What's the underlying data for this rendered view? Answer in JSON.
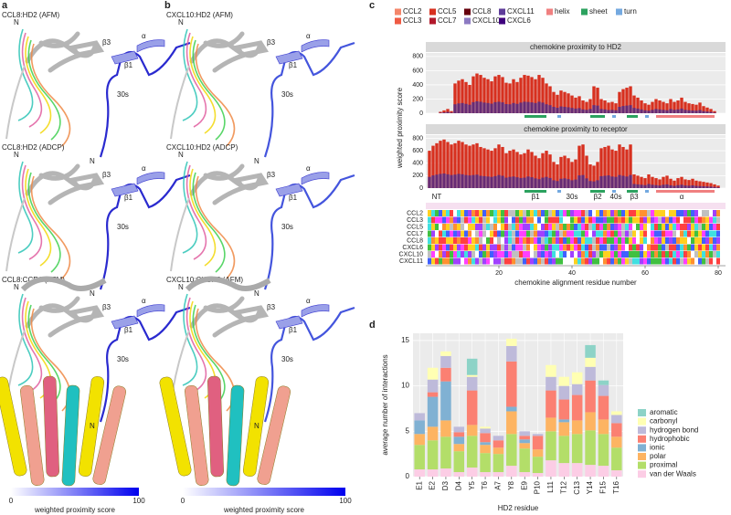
{
  "panels": {
    "a": "a",
    "b": "b",
    "c": "c",
    "d": "d"
  },
  "structures": [
    {
      "title": "CCL8:HD2 (AFM)",
      "labels": [
        "N",
        "β3",
        "α",
        "β1",
        "30s",
        "N"
      ]
    },
    {
      "title": "CCL8:HD2 (ADCP)",
      "labels": [
        "N",
        "β3",
        "α",
        "β1",
        "30s",
        "N"
      ]
    },
    {
      "title": "CCL8:CCR1 (AFM)",
      "labels": [
        "N",
        "β3",
        "α",
        "β1",
        "30s",
        "N"
      ]
    },
    {
      "title": "CXCL10:HD2 (AFM)",
      "labels": [
        "N",
        "β3",
        "α",
        "β1",
        "30s",
        "N"
      ]
    },
    {
      "title": "CXCL10:HD2 (ADCP)",
      "labels": [
        "N",
        "β3",
        "α",
        "β1",
        "30s",
        "N"
      ]
    },
    {
      "title": "CXCL10:CXCR3 (AFM)",
      "labels": [
        "N",
        "β3",
        "α",
        "β1",
        "30s",
        "N"
      ]
    }
  ],
  "colorbars": [
    {
      "min": 0,
      "max": 100,
      "label": "weighted proximity score"
    },
    {
      "min": 0,
      "max": 100,
      "label": "weighted proximity score"
    }
  ],
  "legend_c": [
    {
      "name": "CCL2",
      "color": "#f4866a"
    },
    {
      "name": "CCL3",
      "color": "#ef5a43"
    },
    {
      "name": "CCL5",
      "color": "#d7301f"
    },
    {
      "name": "CCL7",
      "color": "#b2182b"
    },
    {
      "name": "CCL8",
      "color": "#67000d"
    },
    {
      "name": "CXCL10",
      "color": "#8c7ac2"
    },
    {
      "name": "CXCL11",
      "color": "#5e3c99"
    },
    {
      "name": "CXCL6",
      "color": "#3f007d"
    },
    {
      "name": "helix",
      "color": "#f08080"
    },
    {
      "name": "sheet",
      "color": "#2ca25f"
    },
    {
      "name": "turn",
      "color": "#74a9e0"
    }
  ],
  "structure_c": [
    {
      "name": "sheet",
      "range": [
        27,
        33
      ]
    },
    {
      "name": "turn",
      "range": [
        36,
        37
      ]
    },
    {
      "name": "sheet",
      "range": [
        45,
        49
      ]
    },
    {
      "name": "turn",
      "range": [
        51,
        52
      ]
    },
    {
      "name": "sheet",
      "range": [
        55,
        58
      ]
    },
    {
      "name": "turn",
      "range": [
        60,
        61
      ]
    },
    {
      "name": "helix",
      "range": [
        63,
        79
      ]
    }
  ],
  "regions_c": [
    {
      "text": "NT",
      "at": 3
    },
    {
      "text": "β1",
      "at": 30
    },
    {
      "text": "30s",
      "at": 40
    },
    {
      "text": "β2",
      "at": 47
    },
    {
      "text": "40s",
      "at": 52
    },
    {
      "text": "β3",
      "at": 57
    },
    {
      "text": "α",
      "at": 70
    }
  ],
  "alignment_rows": [
    "CCL2",
    "CCL3",
    "CCL5",
    "CCL7",
    "CCL8",
    "CXCL6",
    "CXCL10",
    "CXCL11"
  ],
  "chart_data": [
    {
      "type": "bar",
      "title": "chemokine proximity to HD2",
      "color": "#d7301f",
      "values": [
        0,
        0,
        0,
        20,
        40,
        60,
        30,
        420,
        460,
        480,
        440,
        400,
        520,
        560,
        540,
        500,
        480,
        450,
        520,
        540,
        510,
        430,
        420,
        480,
        440,
        500,
        540,
        530,
        510,
        480,
        540,
        500,
        420,
        380,
        300,
        260,
        320,
        300,
        280,
        250,
        220,
        240,
        180,
        160,
        200,
        380,
        360,
        200,
        180,
        150,
        160,
        140,
        300,
        340,
        360,
        380,
        250,
        220,
        180,
        140,
        120,
        160,
        200,
        180,
        160,
        140,
        200,
        160,
        180,
        220,
        160,
        140,
        130,
        120,
        150,
        100,
        80,
        60,
        30,
        0
      ],
      "xlim": [
        0,
        82
      ],
      "ylim": [
        0,
        850
      ],
      "yticks": [
        0,
        200,
        400,
        600,
        800
      ],
      "grid": true
    },
    {
      "type": "bar",
      "title": "chemokine proximity to receptor",
      "color": "#d7301f",
      "values": [
        600,
        680,
        720,
        760,
        780,
        740,
        700,
        720,
        760,
        740,
        700,
        680,
        700,
        720,
        660,
        640,
        620,
        600,
        640,
        700,
        660,
        560,
        600,
        620,
        580,
        540,
        560,
        620,
        580,
        520,
        480,
        560,
        600,
        540,
        420,
        380,
        500,
        520,
        480,
        420,
        460,
        680,
        700,
        520,
        380,
        360,
        420,
        640,
        660,
        680,
        620,
        600,
        700,
        660,
        620,
        700,
        220,
        200,
        180,
        160,
        220,
        180,
        160,
        140,
        180,
        200,
        150,
        120,
        160,
        180,
        140,
        130,
        150,
        120,
        110,
        100,
        90,
        80,
        60,
        40
      ],
      "xlim": [
        0,
        82
      ],
      "xticks": [
        20,
        40,
        60,
        80
      ],
      "ylim": [
        0,
        850
      ],
      "yticks": [
        0,
        200,
        400,
        600,
        800
      ],
      "grid": true,
      "xlabel": "chemokine alignment residue number",
      "ylabel": "weighted proximity score"
    },
    {
      "type": "stacked_bar",
      "xlabel": "HD2 residue",
      "ylabel": "average number of interactions",
      "categories": [
        "E1",
        "E2",
        "D3",
        "D4",
        "Y5",
        "T6",
        "A7",
        "Y8",
        "E9",
        "P10",
        "L11",
        "T12",
        "C13",
        "Y14",
        "F15",
        "T16"
      ],
      "ylim": [
        0,
        15.8
      ],
      "yticks": [
        0,
        5,
        10,
        15
      ],
      "grid": true,
      "legend": "right",
      "series": [
        {
          "name": "aromatic",
          "color": "#8dd3c7",
          "values": [
            0,
            0,
            0,
            0,
            1.8,
            0,
            0,
            0,
            0,
            0,
            0,
            0,
            0,
            1.4,
            0.5,
            0
          ]
        },
        {
          "name": "carbonyl",
          "color": "#ffffb3",
          "values": [
            0,
            1.3,
            0.5,
            0,
            0.2,
            0.2,
            0,
            0.8,
            0,
            0,
            1.3,
            1.0,
            1.3,
            1.0,
            0,
            0.4
          ]
        },
        {
          "name": "hydrogen bond",
          "color": "#bebada",
          "values": [
            0.8,
            1.4,
            1.3,
            0.6,
            1.5,
            0.5,
            0.5,
            1.7,
            0.5,
            0.2,
            1.5,
            1.5,
            1.2,
            1.5,
            1.2,
            0.9
          ]
        },
        {
          "name": "hydrophobic",
          "color": "#fb8072",
          "values": [
            0,
            0.5,
            1.5,
            0.5,
            3.8,
            1.0,
            0.8,
            5.0,
            0.4,
            1.5,
            3.0,
            2.2,
            2.8,
            3.5,
            2.6,
            1.5
          ]
        },
        {
          "name": "ionic",
          "color": "#80b1d3",
          "values": [
            1.5,
            3.3,
            4.3,
            0.8,
            0,
            0.3,
            0,
            0.5,
            0.4,
            0,
            0,
            0.3,
            0,
            0,
            0,
            0
          ]
        },
        {
          "name": "polar",
          "color": "#fdb462",
          "values": [
            1.2,
            1.5,
            1.8,
            0.8,
            1.2,
            0.9,
            0.7,
            2.5,
            0.6,
            0.8,
            1.5,
            1.5,
            1.5,
            2.0,
            1.6,
            1.2
          ]
        },
        {
          "name": "proximal",
          "color": "#b3de69",
          "values": [
            2.7,
            3.2,
            3.5,
            2.3,
            3.5,
            2.1,
            2.0,
            3.5,
            2.6,
            1.8,
            3.2,
            3.0,
            3.2,
            3.8,
            3.5,
            2.5
          ]
        },
        {
          "name": "van der Waals",
          "color": "#fccde5",
          "values": [
            0.8,
            0.8,
            0.9,
            0.5,
            1.0,
            0.5,
            0.5,
            1.2,
            0.5,
            0.4,
            1.8,
            1.5,
            1.5,
            1.3,
            1.2,
            0.7
          ]
        }
      ]
    }
  ]
}
